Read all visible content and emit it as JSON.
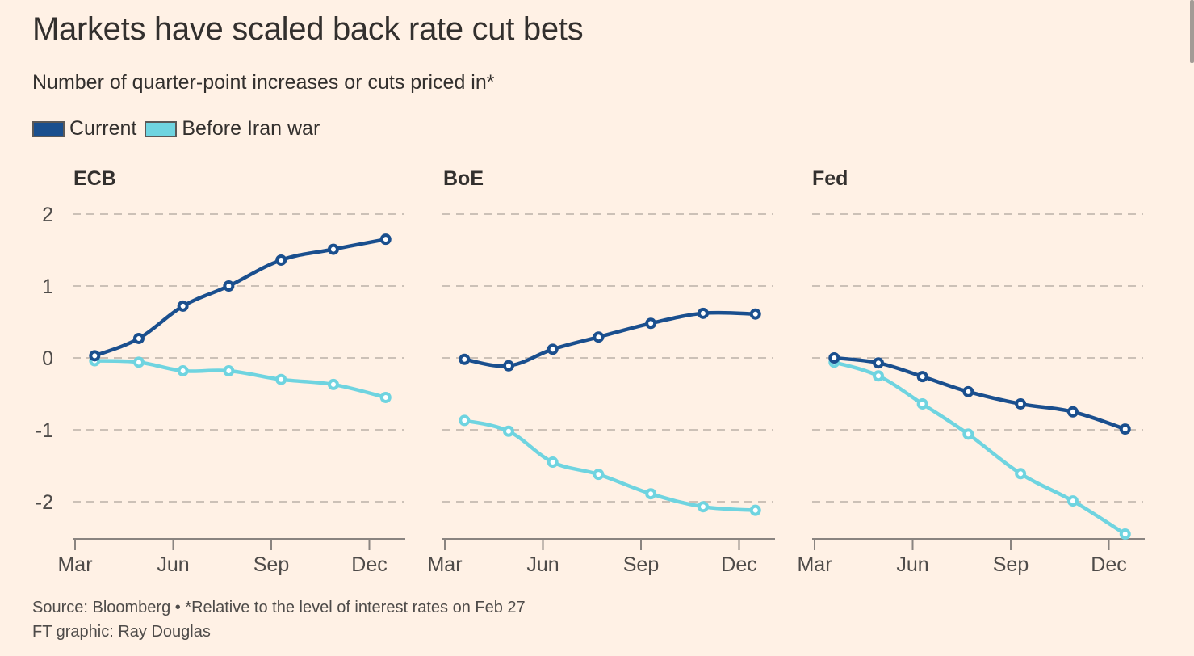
{
  "title": "Markets have scaled back rate cut bets",
  "subtitle": "Number of quarter-point increases or cuts priced in*",
  "legend": [
    {
      "label": "Current",
      "color": "#1a4f8e"
    },
    {
      "label": "Before Iran war",
      "color": "#6fd4e0"
    }
  ],
  "source_line": "Source: Bloomberg • *Relative to the level of interest rates on Feb 27",
  "credit_line": "FT graphic: Ray Douglas",
  "colors": {
    "current": "#1a4f8e",
    "before": "#6fd4e0",
    "grid": "#ccc1b7",
    "axis": "#8a8480",
    "background": "#fff1e5"
  },
  "chart_data": {
    "type": "line",
    "title": "Markets have scaled back rate cut bets",
    "subtitle": "Number of quarter-point increases or cuts priced in*",
    "ylabel": "",
    "xlabel": "",
    "ylim": [
      -2.5,
      2.2
    ],
    "yticks": [
      2,
      1,
      0,
      -1,
      -2
    ],
    "ytick_labels": [
      "2",
      "1",
      "0",
      "-1",
      "-2"
    ],
    "xticks": [
      "Mar",
      "Jun",
      "Sep",
      "Dec"
    ],
    "x_months": [
      3.6,
      4.95,
      6.3,
      7.7,
      9.3,
      10.9,
      12.5
    ],
    "grid": true,
    "legend_position": "top-left",
    "panels": [
      {
        "name": "ECB",
        "series": [
          {
            "name": "Current",
            "values": [
              0.03,
              0.27,
              0.72,
              1.0,
              1.36,
              1.51,
              1.65
            ]
          },
          {
            "name": "Before Iran war",
            "values": [
              -0.04,
              -0.06,
              -0.18,
              -0.18,
              -0.3,
              -0.37,
              -0.55
            ]
          }
        ]
      },
      {
        "name": "BoE",
        "series": [
          {
            "name": "Current",
            "values": [
              -0.02,
              -0.11,
              0.12,
              0.29,
              0.48,
              0.62,
              0.61
            ]
          },
          {
            "name": "Before Iran war",
            "values": [
              -0.87,
              -1.02,
              -1.45,
              -1.62,
              -1.89,
              -2.07,
              -2.12
            ]
          }
        ]
      },
      {
        "name": "Fed",
        "series": [
          {
            "name": "Current",
            "values": [
              0.0,
              -0.07,
              -0.26,
              -0.47,
              -0.64,
              -0.75,
              -0.99
            ]
          },
          {
            "name": "Before Iran war",
            "values": [
              -0.06,
              -0.25,
              -0.64,
              -1.06,
              -1.61,
              -1.99,
              -2.45
            ]
          }
        ]
      }
    ]
  }
}
